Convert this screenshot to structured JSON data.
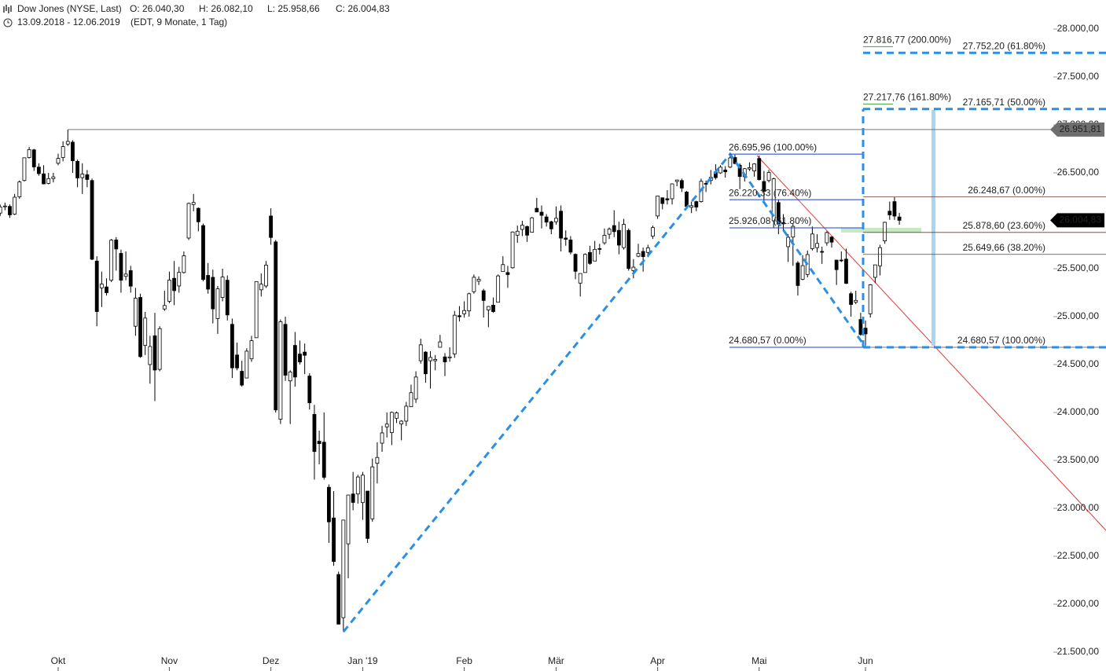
{
  "chart_data": {
    "type": "candlestick",
    "title": "Dow Jones (NYSE, Last)",
    "quote": [
      "O: 26.040,30",
      "H: 26.082,10",
      "L: 25.958,66",
      "C: 26.004,83"
    ],
    "range": "13.09.2018 - 12.06.2019",
    "range_note": "(EDT, 9 Monate, 1 Tag)",
    "categories": [
      null,
      null,
      null,
      null,
      null,
      null,
      null,
      null,
      null,
      null,
      null,
      null,
      "Okt",
      null,
      null,
      null,
      null,
      null,
      null,
      null,
      null,
      null,
      null,
      null,
      null,
      null,
      null,
      null,
      null,
      null,
      null,
      null,
      null,
      null,
      null,
      "Nov",
      null,
      null,
      null,
      null,
      null,
      null,
      null,
      null,
      null,
      null,
      null,
      null,
      null,
      null,
      null,
      null,
      null,
      null,
      null,
      null,
      "Dez",
      null,
      null,
      null,
      null,
      null,
      null,
      null,
      null,
      null,
      null,
      null,
      null,
      null,
      null,
      null,
      null,
      null,
      null,
      "Jan '19",
      null,
      null,
      null,
      null,
      null,
      null,
      null,
      null,
      null,
      null,
      null,
      null,
      null,
      null,
      null,
      null,
      null,
      null,
      null,
      null,
      "Feb",
      null,
      null,
      null,
      null,
      null,
      null,
      null,
      null,
      null,
      null,
      null,
      null,
      null,
      null,
      null,
      null,
      null,
      null,
      "Mär",
      null,
      null,
      null,
      null,
      null,
      null,
      null,
      null,
      null,
      null,
      null,
      null,
      null,
      null,
      null,
      null,
      null,
      null,
      null,
      null,
      "Apr",
      null,
      null,
      null,
      null,
      null,
      null,
      null,
      null,
      null,
      null,
      null,
      null,
      null,
      null,
      null,
      null,
      null,
      null,
      null,
      null,
      "Mai",
      null,
      null,
      null,
      null,
      null,
      null,
      null,
      null,
      null,
      null,
      null,
      null,
      null,
      null,
      null,
      null,
      null,
      null,
      null,
      null,
      null,
      "Jun",
      null,
      null,
      null,
      null,
      null,
      null,
      null
    ],
    "ohlc": [
      [
        26080,
        26170,
        26050,
        26145
      ],
      [
        26150,
        26190,
        26110,
        26154
      ],
      [
        26150,
        26170,
        26030,
        26062
      ],
      [
        26070,
        26280,
        26060,
        26246
      ],
      [
        26250,
        26420,
        26230,
        26405
      ],
      [
        26420,
        26660,
        26410,
        26657
      ],
      [
        26660,
        26770,
        26650,
        26743
      ],
      [
        26740,
        26750,
        26520,
        26562
      ],
      [
        26560,
        26600,
        26470,
        26492
      ],
      [
        26490,
        26580,
        26380,
        26385
      ],
      [
        26390,
        26500,
        26380,
        26440
      ],
      [
        26440,
        26500,
        26400,
        26458
      ],
      [
        26600,
        26700,
        26580,
        26651
      ],
      [
        26660,
        26830,
        26620,
        26774
      ],
      [
        26800,
        26952,
        26780,
        26828
      ],
      [
        26820,
        26840,
        26500,
        26627
      ],
      [
        26620,
        26640,
        26350,
        26447
      ],
      [
        26450,
        26600,
        26280,
        26487
      ],
      [
        26480,
        26530,
        26350,
        26431
      ],
      [
        26420,
        26440,
        25590,
        25599
      ],
      [
        25580,
        25630,
        24900,
        25053
      ],
      [
        25300,
        25470,
        25100,
        25340
      ],
      [
        25310,
        25400,
        25220,
        25250
      ],
      [
        25380,
        25810,
        25360,
        25798
      ],
      [
        25800,
        25830,
        25480,
        25706
      ],
      [
        25660,
        25700,
        25250,
        25380
      ],
      [
        25420,
        25680,
        25380,
        25444
      ],
      [
        25480,
        25530,
        25250,
        25318
      ],
      [
        24900,
        25300,
        24800,
        25192
      ],
      [
        25200,
        25240,
        24570,
        24583
      ],
      [
        24700,
        25050,
        24600,
        24985
      ],
      [
        24500,
        24800,
        24300,
        24689
      ],
      [
        24800,
        25040,
        24120,
        24443
      ],
      [
        24450,
        24900,
        24430,
        24875
      ],
      [
        25080,
        25270,
        25060,
        25116
      ],
      [
        25160,
        25470,
        25140,
        25381
      ],
      [
        25400,
        25580,
        25120,
        25271
      ],
      [
        25320,
        25520,
        25250,
        25462
      ],
      [
        25460,
        25680,
        25450,
        25635
      ],
      [
        25820,
        26190,
        25800,
        26181
      ],
      [
        26170,
        26280,
        26100,
        26191
      ],
      [
        26130,
        26140,
        25890,
        25989
      ],
      [
        25950,
        25970,
        25370,
        25388
      ],
      [
        25430,
        25560,
        25240,
        25287
      ],
      [
        25410,
        25490,
        24930,
        25081
      ],
      [
        24980,
        25320,
        24820,
        25290
      ],
      [
        25200,
        25500,
        25160,
        25414
      ],
      [
        25380,
        25430,
        24960,
        25018
      ],
      [
        24920,
        24980,
        24360,
        24466
      ],
      [
        24600,
        24730,
        24440,
        24465
      ],
      [
        24430,
        24540,
        24270,
        24286
      ],
      [
        24360,
        24670,
        24360,
        24640
      ],
      [
        24560,
        24800,
        24530,
        24749
      ],
      [
        24780,
        25370,
        24780,
        25366
      ],
      [
        25280,
        25450,
        25210,
        25339
      ],
      [
        25320,
        25580,
        25300,
        25538
      ],
      [
        26050,
        26130,
        25750,
        25826
      ],
      [
        25780,
        25800,
        24000,
        24027
      ],
      [
        23930,
        24970,
        23880,
        24947
      ],
      [
        24920,
        25000,
        24330,
        24389
      ],
      [
        24330,
        24440,
        23880,
        24423
      ],
      [
        24700,
        24840,
        24270,
        24370
      ],
      [
        24610,
        24750,
        24500,
        24527
      ],
      [
        24630,
        24720,
        24400,
        24597
      ],
      [
        24380,
        24410,
        24030,
        24101
      ],
      [
        23980,
        24080,
        23300,
        23593
      ],
      [
        23700,
        23810,
        23460,
        23675
      ],
      [
        23690,
        24000,
        23300,
        23324
      ],
      [
        23220,
        23250,
        22640,
        22859
      ],
      [
        22900,
        23180,
        22400,
        22446
      ],
      [
        22310,
        22340,
        21790,
        21792
      ],
      [
        21860,
        22880,
        21712,
        22878
      ],
      [
        22630,
        23140,
        22270,
        23139
      ],
      [
        23150,
        23380,
        22980,
        23062
      ],
      [
        23150,
        23350,
        23050,
        23327
      ],
      [
        23060,
        23380,
        22880,
        23346
      ],
      [
        23180,
        23180,
        22640,
        22686
      ],
      [
        22890,
        23520,
        22860,
        23433
      ],
      [
        23470,
        23690,
        23260,
        23531
      ],
      [
        23680,
        23860,
        23590,
        23787
      ],
      [
        23850,
        24000,
        23740,
        23879
      ],
      [
        23790,
        24010,
        23660,
        24001
      ],
      [
        23940,
        24010,
        23890,
        23996
      ],
      [
        23880,
        23920,
        23710,
        23910
      ],
      [
        23910,
        24110,
        23860,
        24066
      ],
      [
        24060,
        24290,
        24060,
        24207
      ],
      [
        24140,
        24430,
        24100,
        24370
      ],
      [
        24540,
        24770,
        24510,
        24706
      ],
      [
        24630,
        24640,
        24310,
        24404
      ],
      [
        24540,
        24640,
        24250,
        24575
      ],
      [
        24540,
        24600,
        24440,
        24554
      ],
      [
        24680,
        24810,
        24680,
        24737
      ],
      [
        24580,
        24620,
        24380,
        24528
      ],
      [
        24570,
        24680,
        24530,
        24580
      ],
      [
        24610,
        25060,
        24570,
        25015
      ],
      [
        25010,
        25110,
        24950,
        24999
      ],
      [
        25030,
        25160,
        24990,
        25064
      ],
      [
        25060,
        25250,
        25000,
        25239
      ],
      [
        25260,
        25440,
        25240,
        25411
      ],
      [
        25370,
        25420,
        25330,
        25390
      ],
      [
        25270,
        25290,
        24990,
        25169
      ],
      [
        25070,
        25110,
        24890,
        25106
      ],
      [
        25120,
        25200,
        25040,
        25053
      ],
      [
        25150,
        25440,
        25150,
        25425
      ],
      [
        25470,
        25630,
        25480,
        25543
      ],
      [
        25460,
        25530,
        25300,
        25439
      ],
      [
        25510,
        25890,
        25500,
        25883
      ],
      [
        25850,
        25950,
        25770,
        25891
      ],
      [
        25910,
        26000,
        25840,
        25954
      ],
      [
        25940,
        25950,
        25780,
        25850
      ],
      [
        25880,
        26040,
        25880,
        26031
      ],
      [
        26130,
        26240,
        26090,
        26092
      ],
      [
        26090,
        26160,
        25920,
        26057
      ],
      [
        26040,
        26070,
        25940,
        25986
      ],
      [
        25990,
        26000,
        25860,
        25916
      ],
      [
        25990,
        26150,
        25960,
        26026
      ],
      [
        26100,
        26160,
        25680,
        25819
      ],
      [
        25820,
        25900,
        25740,
        25807
      ],
      [
        25800,
        25840,
        25650,
        25673
      ],
      [
        25650,
        25660,
        25390,
        25473
      ],
      [
        25350,
        25450,
        25210,
        25450
      ],
      [
        25460,
        25660,
        25460,
        25650
      ],
      [
        25670,
        25740,
        25540,
        25555
      ],
      [
        25580,
        25790,
        25580,
        25702
      ],
      [
        25710,
        25760,
        25650,
        25709
      ],
      [
        25770,
        25920,
        25750,
        25849
      ],
      [
        25860,
        25930,
        25810,
        25914
      ],
      [
        25950,
        26110,
        25830,
        25887
      ],
      [
        25900,
        25990,
        25650,
        25746
      ],
      [
        25720,
        26020,
        25700,
        25962
      ],
      [
        25900,
        25920,
        25480,
        25502
      ],
      [
        25480,
        25600,
        25400,
        25516
      ],
      [
        25630,
        25760,
        25620,
        25658
      ],
      [
        25680,
        25720,
        25470,
        25626
      ],
      [
        25670,
        25750,
        25620,
        25717
      ],
      [
        25840,
        25950,
        25810,
        25929
      ],
      [
        26050,
        26260,
        26020,
        26258
      ],
      [
        26240,
        26240,
        26120,
        26180
      ],
      [
        26230,
        26320,
        26170,
        26218
      ],
      [
        26230,
        26390,
        26170,
        26385
      ],
      [
        26410,
        26430,
        26360,
        26425
      ],
      [
        26420,
        26440,
        26300,
        26341
      ],
      [
        26300,
        26310,
        26130,
        26150
      ],
      [
        26140,
        26200,
        26080,
        26157
      ],
      [
        26200,
        26210,
        26100,
        26143
      ],
      [
        26200,
        26440,
        26190,
        26412
      ],
      [
        26390,
        26420,
        26300,
        26384
      ],
      [
        26420,
        26530,
        26380,
        26453
      ],
      [
        26510,
        26590,
        26430,
        26450
      ],
      [
        26500,
        26580,
        26490,
        26559
      ],
      [
        26530,
        26570,
        26450,
        26511
      ],
      [
        26560,
        26696,
        26550,
        26656
      ],
      [
        26660,
        26690,
        26590,
        26597
      ],
      [
        26580,
        26600,
        26330,
        26462
      ],
      [
        26460,
        26550,
        26410,
        26543
      ],
      [
        26540,
        26610,
        26520,
        26554
      ],
      [
        26520,
        26600,
        26460,
        26593
      ],
      [
        26650,
        26680,
        26420,
        26430
      ],
      [
        26410,
        26520,
        26200,
        26307
      ],
      [
        26420,
        26530,
        26400,
        26505
      ],
      [
        26000,
        26450,
        25930,
        26438
      ],
      [
        26190,
        26220,
        25860,
        25965
      ],
      [
        25980,
        26070,
        25890,
        25968
      ],
      [
        25730,
        25860,
        25570,
        25828
      ],
      [
        25830,
        25970,
        25530,
        25942
      ],
      [
        25560,
        25580,
        25220,
        25325
      ],
      [
        25390,
        25640,
        25380,
        25532
      ],
      [
        25440,
        25690,
        25410,
        25648
      ],
      [
        25710,
        25940,
        25690,
        25862
      ],
      [
        25720,
        25860,
        25670,
        25764
      ],
      [
        25680,
        25730,
        25550,
        25679
      ],
      [
        25770,
        25890,
        25740,
        25877
      ],
      [
        25830,
        25840,
        25720,
        25777
      ],
      [
        25590,
        25590,
        25330,
        25490
      ],
      [
        25590,
        25680,
        25570,
        25586
      ],
      [
        25600,
        25710,
        25340,
        25347
      ],
      [
        25240,
        25260,
        25000,
        25127
      ],
      [
        25150,
        25270,
        25130,
        25170
      ],
      [
        24970,
        25040,
        24800,
        24815
      ],
      [
        24880,
        24960,
        24680,
        24820
      ],
      [
        25030,
        25340,
        24990,
        25332
      ],
      [
        25410,
        25540,
        25350,
        25540
      ],
      [
        25530,
        25750,
        25430,
        25720
      ],
      [
        25790,
        25990,
        25760,
        25984
      ],
      [
        26100,
        26200,
        26010,
        26062
      ],
      [
        26200,
        26250,
        26010,
        26049
      ],
      [
        26040,
        26082,
        25959,
        26005
      ]
    ],
    "up_color": "#ffffff",
    "down_color": "#000000",
    "ylim": [
      21500,
      28000
    ],
    "yticks": [
      {
        "value": 21500,
        "label": "21.500,00"
      },
      {
        "value": 22000,
        "label": "22.000,00"
      },
      {
        "value": 22500,
        "label": "22.500,00"
      },
      {
        "value": 23000,
        "label": "23.000,00"
      },
      {
        "value": 23500,
        "label": "23.500,00"
      },
      {
        "value": 24000,
        "label": "24.000,00"
      },
      {
        "value": 24500,
        "label": "24.500,00"
      },
      {
        "value": 25000,
        "label": "25.000,00"
      },
      {
        "value": 25500,
        "label": "25.500,00"
      },
      {
        "value": 26000,
        "label": "26.000,00"
      },
      {
        "value": 26500,
        "label": "26.500,00"
      },
      {
        "value": 27000,
        "label": "27.000,00"
      },
      {
        "value": 27500,
        "label": "27.500,00"
      },
      {
        "value": 28000,
        "label": "28.000,00"
      }
    ],
    "price_tags": [
      {
        "value": 26951.81,
        "label": "26.951,81",
        "color": "#6e6e6e"
      },
      {
        "value": 26004.83,
        "label": "26.004,83",
        "color": "#000000"
      }
    ],
    "levels": [
      {
        "color": "#1a3fd6",
        "items": [
          {
            "value": 26695.96,
            "label": "26.695,96 (100.00%)"
          },
          {
            "value": 26220.33,
            "label": "26.220,33 (76.40%)"
          },
          {
            "value": 25926.08,
            "label": "25.926,08 (61.80%)"
          },
          {
            "value": 24680.57,
            "label": "24.680,57 (0.00%)"
          }
        ]
      },
      {
        "color": "#6b3a2a",
        "items": [
          {
            "value": 26248.67,
            "label": "26.248,67 (0.00%)"
          },
          {
            "value": 25878.6,
            "label": "25.878,60 (23.60%)"
          },
          {
            "value": 25649.66,
            "label": "25.649,66 (38.20%)"
          },
          {
            "value": 24680.57,
            "label": "24.680,57 (100.00%)"
          }
        ]
      },
      {
        "color": "#3fa535",
        "items": [
          {
            "value": 27816.77,
            "label": "27.816,77 (200.00%)"
          },
          {
            "value": 27217.76,
            "label": "27.217,76 (161.80%)"
          }
        ]
      },
      {
        "color": "#2b9be8",
        "items": [
          {
            "value": 27752.2,
            "label": "27.752,20 (61.80%)"
          },
          {
            "value": 27165.71,
            "label": "27.165,71 (50.00%)"
          }
        ]
      }
    ]
  }
}
